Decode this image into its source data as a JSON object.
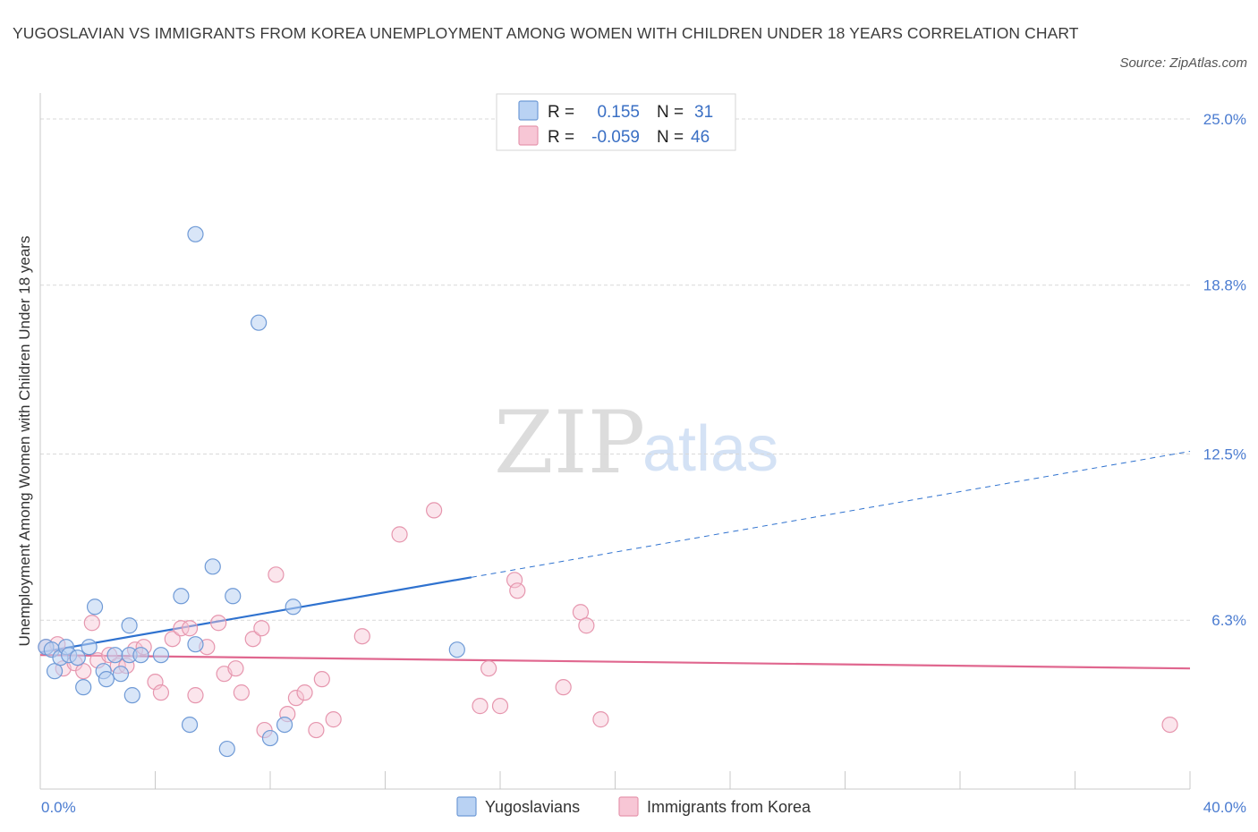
{
  "title": "YUGOSLAVIAN VS IMMIGRANTS FROM KOREA UNEMPLOYMENT AMONG WOMEN WITH CHILDREN UNDER 18 YEARS CORRELATION CHART",
  "source": "Source: ZipAtlas.com",
  "watermark": {
    "zip": "ZIP",
    "atlas": "atlas"
  },
  "colors": {
    "blue_fill": "#b9d2f3",
    "blue_stroke": "#6f9ad6",
    "blue_line": "#2f72cf",
    "pink_fill": "#f7c6d5",
    "pink_stroke": "#e696ae",
    "pink_line": "#e0678f",
    "grid": "#d9d9d9",
    "tick_text": "#4a7bd0"
  },
  "legend": {
    "rows": [
      {
        "r_label": "R =",
        "r_value": "0.155",
        "n_label": "N =",
        "n_value": "31"
      },
      {
        "r_label": "R =",
        "r_value": "-0.059",
        "n_label": "N =",
        "n_value": "46"
      }
    ]
  },
  "chart_data": {
    "type": "scatter",
    "title": "YUGOSLAVIAN VS IMMIGRANTS FROM KOREA UNEMPLOYMENT AMONG WOMEN WITH CHILDREN UNDER 18 YEARS CORRELATION CHART",
    "xlabel": "",
    "ylabel": "Unemployment Among Women with Children Under 18 years",
    "xlim": [
      0,
      40
    ],
    "ylim": [
      0,
      25.5
    ],
    "x_tick_labels": [
      "0.0%",
      "40.0%"
    ],
    "y_ticks": [
      6.3,
      12.5,
      18.8,
      25.0
    ],
    "y_tick_labels": [
      "6.3%",
      "12.5%",
      "18.8%",
      "25.0%"
    ],
    "legend_position": "top-center",
    "series": [
      {
        "name": "Yugoslavians",
        "r": 0.155,
        "n": 31,
        "trend": {
          "x0": 0,
          "y0": 5.1,
          "x1": 15,
          "y1": 7.9,
          "dash_to_x": 40,
          "dash_to_y": 12.6
        },
        "points": [
          [
            0.2,
            5.3
          ],
          [
            0.4,
            5.2
          ],
          [
            0.5,
            4.4
          ],
          [
            0.7,
            4.9
          ],
          [
            0.9,
            5.3
          ],
          [
            1.0,
            5.0
          ],
          [
            1.3,
            4.9
          ],
          [
            1.5,
            3.8
          ],
          [
            1.7,
            5.3
          ],
          [
            1.9,
            6.8
          ],
          [
            2.2,
            4.4
          ],
          [
            2.3,
            4.1
          ],
          [
            2.6,
            5.0
          ],
          [
            2.8,
            4.3
          ],
          [
            3.1,
            5.0
          ],
          [
            3.1,
            6.1
          ],
          [
            3.2,
            3.5
          ],
          [
            3.5,
            5.0
          ],
          [
            4.2,
            5.0
          ],
          [
            4.9,
            7.2
          ],
          [
            5.2,
            2.4
          ],
          [
            5.4,
            5.4
          ],
          [
            5.4,
            20.7
          ],
          [
            6.0,
            8.3
          ],
          [
            6.5,
            1.5
          ],
          [
            6.7,
            7.2
          ],
          [
            7.6,
            17.4
          ],
          [
            8.0,
            1.9
          ],
          [
            8.5,
            2.4
          ],
          [
            8.8,
            6.8
          ],
          [
            14.5,
            5.2
          ]
        ]
      },
      {
        "name": "Immigrants from Korea",
        "r": -0.059,
        "n": 46,
        "trend": {
          "x0": 0,
          "y0": 5.0,
          "x1": 40,
          "y1": 4.5
        },
        "points": [
          [
            0.2,
            5.3
          ],
          [
            0.6,
            5.4
          ],
          [
            0.8,
            4.5
          ],
          [
            1.2,
            4.7
          ],
          [
            1.5,
            4.4
          ],
          [
            1.8,
            6.2
          ],
          [
            2.0,
            4.8
          ],
          [
            2.4,
            5.0
          ],
          [
            2.7,
            4.6
          ],
          [
            3.0,
            4.6
          ],
          [
            3.3,
            5.2
          ],
          [
            3.6,
            5.3
          ],
          [
            4.0,
            4.0
          ],
          [
            4.2,
            3.6
          ],
          [
            4.6,
            5.6
          ],
          [
            4.9,
            6.0
          ],
          [
            5.2,
            6.0
          ],
          [
            5.4,
            3.5
          ],
          [
            5.8,
            5.3
          ],
          [
            6.2,
            6.2
          ],
          [
            6.4,
            4.3
          ],
          [
            6.8,
            4.5
          ],
          [
            7.0,
            3.6
          ],
          [
            7.4,
            5.6
          ],
          [
            7.7,
            6.0
          ],
          [
            7.8,
            2.2
          ],
          [
            8.2,
            8.0
          ],
          [
            8.6,
            2.8
          ],
          [
            8.9,
            3.4
          ],
          [
            9.2,
            3.6
          ],
          [
            9.6,
            2.2
          ],
          [
            9.8,
            4.1
          ],
          [
            10.2,
            2.6
          ],
          [
            11.2,
            5.7
          ],
          [
            12.5,
            9.5
          ],
          [
            13.7,
            10.4
          ],
          [
            15.3,
            3.1
          ],
          [
            15.6,
            4.5
          ],
          [
            16.0,
            3.1
          ],
          [
            16.5,
            7.8
          ],
          [
            16.6,
            7.4
          ],
          [
            18.2,
            3.8
          ],
          [
            18.8,
            6.6
          ],
          [
            19.0,
            6.1
          ],
          [
            19.5,
            2.6
          ],
          [
            39.3,
            2.4
          ]
        ]
      }
    ]
  }
}
